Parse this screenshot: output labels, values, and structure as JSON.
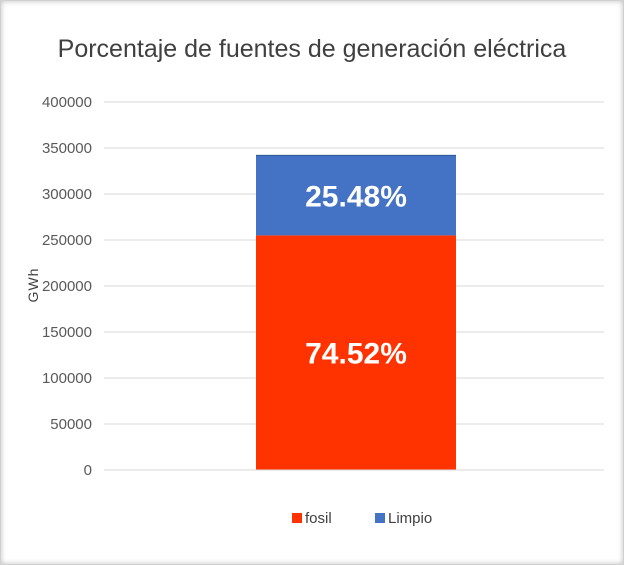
{
  "chart_data": {
    "type": "bar",
    "stacked": true,
    "title": "Porcentaje de fuentes de generación eléctrica",
    "ylabel": "GWh",
    "xlabel": "",
    "ylim": [
      0,
      400000
    ],
    "yticks": [
      "0",
      "50000",
      "100000",
      "150000",
      "200000",
      "250000",
      "300000",
      "350000",
      "400000"
    ],
    "categories": [
      ""
    ],
    "series": [
      {
        "name": "fosil",
        "values": [
          255000
        ],
        "label": "74.52%",
        "color": "#ff3300"
      },
      {
        "name": "Limpio",
        "values": [
          87000
        ],
        "label": "25.48%",
        "color": "#4472c4"
      }
    ],
    "grid": true,
    "legend": "bottom"
  }
}
